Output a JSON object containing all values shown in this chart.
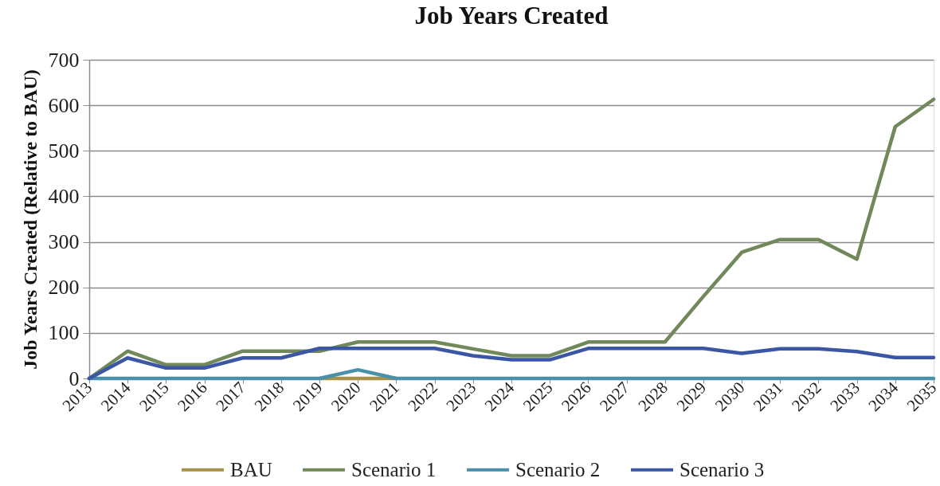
{
  "chart_data": {
    "type": "line",
    "title": "Job Years Created",
    "ylabel": "Job Years Created (Relative to BAU)",
    "categories": [
      "2013",
      "2014",
      "2015",
      "2016",
      "2017",
      "2018",
      "2019",
      "2020",
      "2021",
      "2022",
      "2023",
      "2024",
      "2025",
      "2026",
      "2027",
      "2028",
      "2029",
      "2030",
      "2031",
      "2032",
      "2033",
      "2034",
      "2035"
    ],
    "series": [
      {
        "name": "BAU",
        "color": "#a8924a",
        "values": [
          null,
          null,
          null,
          null,
          null,
          null,
          0,
          0,
          0,
          null,
          null,
          null,
          null,
          null,
          null,
          null,
          null,
          null,
          null,
          null,
          null,
          null,
          null
        ]
      },
      {
        "name": "Scenario 1",
        "color": "#70885a",
        "values": [
          0,
          60,
          30,
          30,
          60,
          60,
          60,
          80,
          80,
          80,
          65,
          50,
          50,
          80,
          80,
          80,
          180,
          277,
          305,
          305,
          262,
          553,
          613
        ]
      },
      {
        "name": "Scenario 2",
        "color": "#4a90a8",
        "values": [
          0,
          0,
          0,
          0,
          0,
          0,
          0,
          19,
          0,
          0,
          0,
          0,
          0,
          0,
          0,
          0,
          0,
          0,
          0,
          0,
          0,
          0,
          0
        ]
      },
      {
        "name": "Scenario 3",
        "color": "#3a56a5",
        "values": [
          0,
          45,
          23,
          23,
          45,
          45,
          66,
          66,
          66,
          66,
          50,
          41,
          41,
          66,
          66,
          66,
          66,
          55,
          65,
          65,
          59,
          46,
          46
        ]
      }
    ],
    "ylim": [
      0,
      700
    ],
    "yticks": [
      0,
      100,
      200,
      300,
      400,
      500,
      600,
      700
    ],
    "grid": "y",
    "legend": "bottom",
    "line_style": "solid"
  }
}
